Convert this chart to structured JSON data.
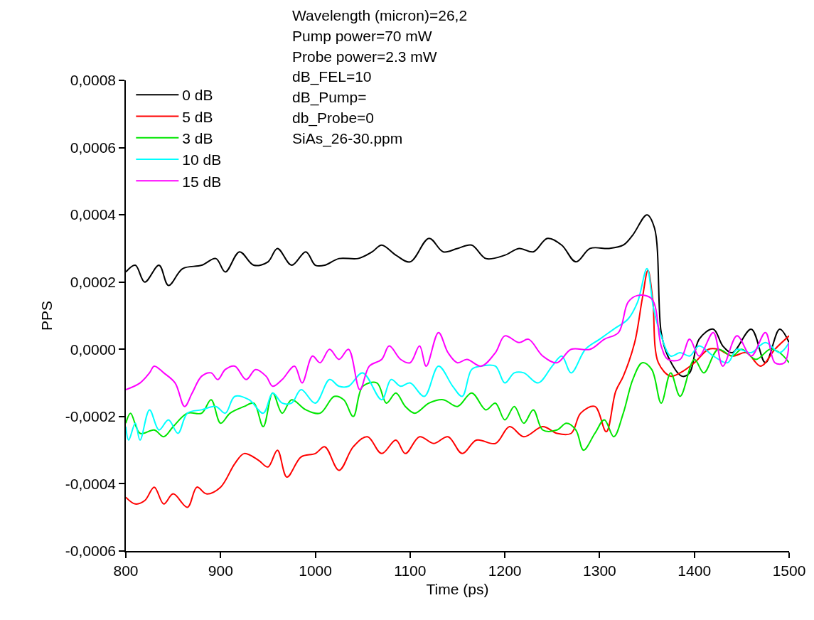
{
  "chart_data": {
    "type": "line",
    "xlabel": "Time (ps)",
    "ylabel": "PPS",
    "xlim": [
      800,
      1500
    ],
    "xticks": [
      800,
      900,
      1000,
      1100,
      1200,
      1300,
      1400,
      1500
    ],
    "ylim": [
      -0.0006,
      0.0008
    ],
    "yticks": [
      {
        "value": -0.0006,
        "label": "-0,0006"
      },
      {
        "value": -0.0004,
        "label": "-0,0004"
      },
      {
        "value": -0.0002,
        "label": "-0,0002"
      },
      {
        "value": 0,
        "label": "0,0000"
      },
      {
        "value": 0.0002,
        "label": "0,0002"
      },
      {
        "value": 0.0004,
        "label": "0,0004"
      },
      {
        "value": 0.0006,
        "label": "0,0006"
      },
      {
        "value": 0.0008,
        "label": "0,0008"
      }
    ],
    "legend": "top left",
    "marker": "none",
    "line_style": "solid",
    "annotations": [
      "Wavelength (micron)=26,2",
      "Pump power=70 mW",
      "Probe power=2.3 mW",
      "dB_FEL=10",
      "dB_Pump=",
      "db_Probe=0",
      "SiAs_26-30.ppm"
    ],
    "series": [
      {
        "name": "0 dB",
        "color": "#000000",
        "x": [
          800,
          810,
          820,
          835,
          845,
          860,
          880,
          895,
          905,
          920,
          935,
          950,
          960,
          975,
          990,
          1000,
          1010,
          1025,
          1045,
          1060,
          1070,
          1085,
          1100,
          1120,
          1135,
          1150,
          1165,
          1180,
          1200,
          1215,
          1230,
          1245,
          1260,
          1275,
          1290,
          1310,
          1325,
          1335,
          1350,
          1358,
          1365,
          1372,
          1387,
          1395,
          1405,
          1420,
          1430,
          1440,
          1460,
          1475,
          1490,
          1500
        ],
        "values": [
          0.00023,
          0.00025,
          0.0002,
          0.00025,
          0.00019,
          0.00024,
          0.00025,
          0.00027,
          0.00023,
          0.00029,
          0.00025,
          0.00026,
          0.0003,
          0.00025,
          0.00029,
          0.00025,
          0.00025,
          0.00027,
          0.00027,
          0.00029,
          0.00031,
          0.00028,
          0.00026,
          0.00033,
          0.00029,
          0.0003,
          0.00031,
          0.00027,
          0.00028,
          0.0003,
          0.00029,
          0.00033,
          0.00031,
          0.00026,
          0.0003,
          0.0003,
          0.00031,
          0.00034,
          0.0004,
          0.00036,
          5e-05,
          -2e-05,
          -8e-05,
          -7e-05,
          3e-05,
          6e-05,
          1e-05,
          -1e-05,
          6e-05,
          -4e-05,
          6e-05,
          2e-05
        ]
      },
      {
        "name": "5 dB",
        "color": "#ff0000",
        "x": [
          800,
          810,
          820,
          830,
          840,
          850,
          865,
          875,
          885,
          900,
          915,
          925,
          940,
          950,
          960,
          970,
          985,
          1000,
          1010,
          1025,
          1040,
          1055,
          1070,
          1085,
          1095,
          1110,
          1125,
          1140,
          1155,
          1170,
          1190,
          1205,
          1220,
          1240,
          1255,
          1270,
          1280,
          1295,
          1307,
          1317,
          1325,
          1337,
          1345,
          1351,
          1356,
          1362,
          1375,
          1385,
          1400,
          1415,
          1425,
          1440,
          1455,
          1470,
          1485,
          1500
        ],
        "values": [
          -0.00044,
          -0.00046,
          -0.00045,
          -0.00041,
          -0.00046,
          -0.00043,
          -0.00047,
          -0.00041,
          -0.00043,
          -0.00041,
          -0.00034,
          -0.00031,
          -0.00033,
          -0.00035,
          -0.0003,
          -0.00038,
          -0.00032,
          -0.00031,
          -0.00029,
          -0.00036,
          -0.00029,
          -0.00026,
          -0.00031,
          -0.00027,
          -0.00031,
          -0.00026,
          -0.00028,
          -0.00026,
          -0.00031,
          -0.00027,
          -0.00028,
          -0.00023,
          -0.00026,
          -0.00023,
          -0.00025,
          -0.00025,
          -0.00019,
          -0.00017,
          -0.000245,
          -0.000125,
          -8e-05,
          2e-05,
          0.00015,
          0.000235,
          0.00015,
          -4e-05,
          -8e-05,
          -7e-05,
          -4e-05,
          0.0,
          0.0,
          -2e-05,
          -1e-05,
          -5e-05,
          0.0,
          4e-05
        ]
      },
      {
        "name": "3 dB",
        "color": "#00e600",
        "x": [
          800,
          805,
          815,
          830,
          840,
          850,
          865,
          880,
          890,
          900,
          910,
          925,
          935,
          945,
          955,
          965,
          975,
          990,
          1005,
          1020,
          1030,
          1040,
          1050,
          1065,
          1075,
          1085,
          1095,
          1105,
          1120,
          1135,
          1150,
          1165,
          1180,
          1190,
          1200,
          1210,
          1220,
          1230,
          1240,
          1255,
          1265,
          1275,
          1283,
          1295,
          1305,
          1315,
          1325,
          1335,
          1345,
          1355,
          1365,
          1375,
          1385,
          1400,
          1410,
          1425,
          1440,
          1450,
          1465,
          1480,
          1490,
          1500
        ],
        "values": [
          -0.00022,
          -0.00019,
          -0.00025,
          -0.00024,
          -0.00026,
          -0.00023,
          -0.00019,
          -0.00019,
          -0.00015,
          -0.00022,
          -0.00019,
          -0.00017,
          -0.00016,
          -0.00023,
          -0.00013,
          -0.00019,
          -0.00015,
          -0.00018,
          -0.00019,
          -0.00014,
          -0.00015,
          -0.0002,
          -0.00011,
          -0.0001,
          -0.00016,
          -0.00013,
          -0.00017,
          -0.00019,
          -0.00016,
          -0.00015,
          -0.00017,
          -0.00013,
          -0.00018,
          -0.00016,
          -0.00021,
          -0.00017,
          -0.00022,
          -0.00018,
          -0.00024,
          -0.00024,
          -0.00022,
          -0.00024,
          -0.0003,
          -0.00025,
          -0.00021,
          -0.00026,
          -0.00019,
          -9e-05,
          -4e-05,
          -6e-05,
          -0.00016,
          -7e-05,
          -0.00014,
          -3e-05,
          -7e-05,
          0.0,
          -2e-05,
          0.0,
          -3e-05,
          0.0,
          -1e-05,
          -4e-05
        ]
      },
      {
        "name": "10 dB",
        "color": "#00ffff",
        "x": [
          800,
          803,
          810,
          815,
          825,
          835,
          845,
          855,
          865,
          880,
          895,
          905,
          915,
          930,
          945,
          955,
          965,
          975,
          985,
          1000,
          1015,
          1025,
          1035,
          1050,
          1070,
          1080,
          1090,
          1100,
          1115,
          1130,
          1145,
          1155,
          1165,
          1175,
          1190,
          1200,
          1210,
          1220,
          1235,
          1250,
          1260,
          1270,
          1285,
          1300,
          1315,
          1330,
          1340,
          1350,
          1357,
          1365,
          1375,
          1385,
          1395,
          1405,
          1420,
          1435,
          1445,
          1460,
          1475,
          1490,
          1500
        ],
        "values": [
          -0.00023,
          -0.00027,
          -0.00022,
          -0.00027,
          -0.00018,
          -0.00024,
          -0.00021,
          -0.00025,
          -0.00019,
          -0.00018,
          -0.00017,
          -0.00019,
          -0.00014,
          -0.00015,
          -0.00019,
          -0.00013,
          -0.00016,
          -0.00016,
          -0.00012,
          -0.00016,
          -9e-05,
          -0.00011,
          -0.00011,
          -7e-05,
          -0.00015,
          -9e-05,
          -0.00011,
          -0.0001,
          -0.00014,
          -5e-05,
          -0.00011,
          -0.00014,
          -6e-05,
          -5e-05,
          -5e-05,
          -0.0001,
          -7e-05,
          -7e-05,
          -0.0001,
          -5e-05,
          -2e-05,
          -7e-05,
          0.0,
          3e-05,
          6e-05,
          9e-05,
          0.00014,
          0.00024,
          0.00012,
          4e-05,
          -2e-05,
          -1e-05,
          -2e-05,
          1e-05,
          -2e-05,
          -4e-05,
          0.0,
          -1e-05,
          2e-05,
          -1e-05,
          2e-05
        ]
      },
      {
        "name": "15 dB",
        "color": "#ff00ff",
        "x": [
          800,
          815,
          825,
          830,
          840,
          852,
          862,
          870,
          880,
          890,
          897,
          905,
          915,
          927,
          937,
          948,
          955,
          965,
          978,
          986,
          997,
          1005,
          1015,
          1025,
          1035,
          1047,
          1057,
          1070,
          1078,
          1090,
          1100,
          1110,
          1117,
          1130,
          1140,
          1150,
          1160,
          1175,
          1190,
          1200,
          1215,
          1225,
          1240,
          1255,
          1270,
          1290,
          1305,
          1320,
          1330,
          1340,
          1355,
          1365,
          1372,
          1385,
          1395,
          1405,
          1420,
          1430,
          1445,
          1460,
          1475,
          1485,
          1495,
          1500
        ],
        "values": [
          -0.00012,
          -0.0001,
          -7e-05,
          -5e-05,
          -7e-05,
          -0.0001,
          -0.00017,
          -0.00013,
          -8e-05,
          -7e-05,
          -9e-05,
          -6e-05,
          -5e-05,
          -9e-05,
          -6e-05,
          -8e-05,
          -0.00011,
          -9e-05,
          -5e-05,
          -0.0001,
          -2e-05,
          -4e-05,
          0.0,
          -3e-05,
          0.0,
          -0.00012,
          -5e-05,
          -3e-05,
          1e-05,
          -3e-05,
          -4e-05,
          1e-05,
          -5e-05,
          5e-05,
          -1e-05,
          -4e-05,
          -3e-05,
          -5e-05,
          -1e-05,
          4e-05,
          2e-05,
          3e-05,
          -2e-05,
          -4e-05,
          0.0,
          0.0,
          3e-05,
          5e-05,
          0.00014,
          0.00016,
          0.00015,
          1e-05,
          -3e-05,
          -3e-05,
          3e-05,
          -2e-05,
          5e-05,
          -5e-05,
          4e-05,
          -2e-05,
          5e-05,
          -4e-05,
          -4e-05,
          2e-05
        ]
      }
    ]
  }
}
